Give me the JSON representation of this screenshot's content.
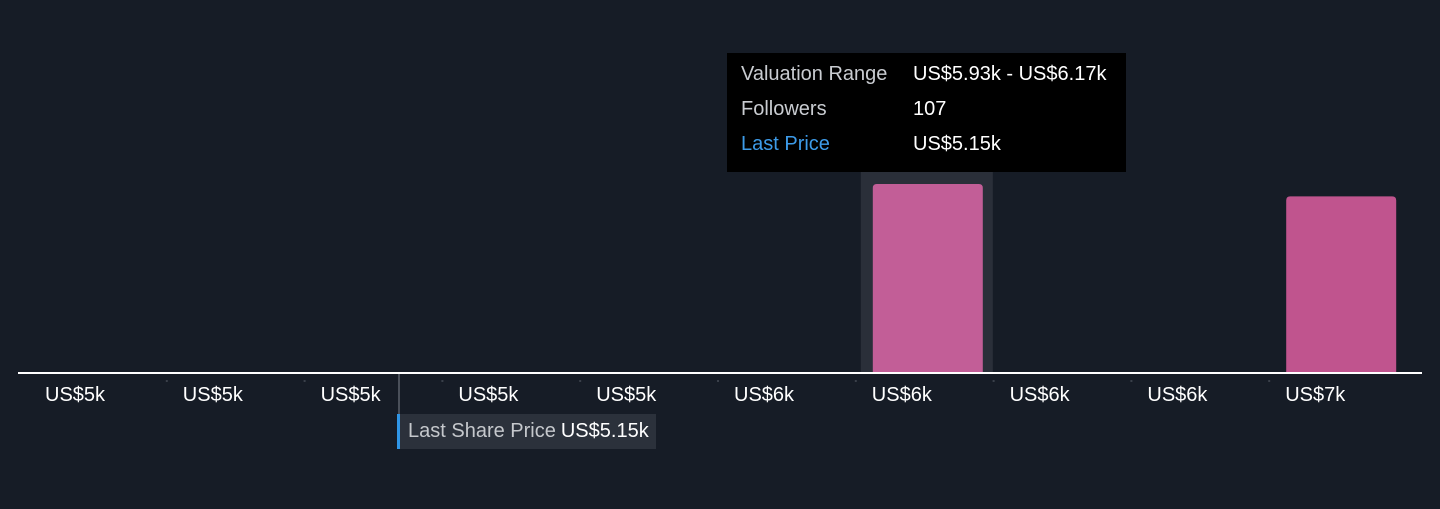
{
  "colors": {
    "background": "#161c26",
    "bar": "#c0548e",
    "bar_hover": "#c25e97",
    "hover_band": "#2a2f39",
    "axis": "#ffffff",
    "marker": "#2f95e6"
  },
  "chart_data": {
    "type": "bar",
    "title": "",
    "xlabel": "",
    "ylabel": "",
    "categories": [
      "US$5k",
      "US$5k",
      "US$5k",
      "US$5k",
      "US$5k",
      "US$6k",
      "US$6k",
      "US$6k",
      "US$6k",
      "US$7k"
    ],
    "values": [
      0,
      0,
      0,
      0,
      0,
      0,
      107,
      0,
      0,
      100
    ],
    "ylim": [
      0,
      120
    ],
    "grid": false,
    "highlighted_index": 6,
    "last_share_price": 5150
  },
  "tooltip": {
    "rows": [
      {
        "key": "Valuation Range",
        "value": "US$5.93k - US$6.17k"
      },
      {
        "key": "Followers",
        "value": "107"
      },
      {
        "key": "Last Price",
        "value": "US$5.15k"
      }
    ]
  },
  "last_share": {
    "label": "Last Share Price",
    "value": "US$5.15k"
  }
}
